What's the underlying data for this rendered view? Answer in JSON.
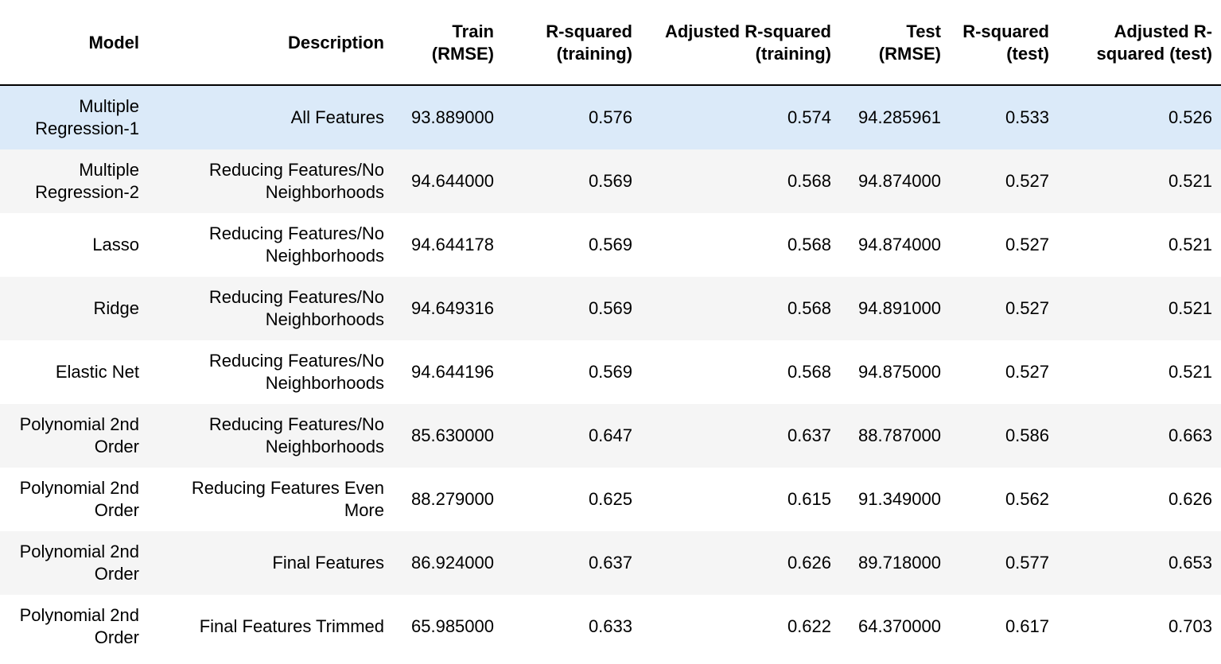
{
  "table": {
    "columns": [
      "Model",
      "Description",
      "Train (RMSE)",
      "R-squared (training)",
      "Adjusted R-squared (training)",
      "Test (RMSE)",
      "R-squared (test)",
      "Adjusted R-squared (test)"
    ],
    "rows": [
      [
        "Multiple Regression-1",
        "All Features",
        "93.889000",
        "0.576",
        "0.574",
        "94.285961",
        "0.533",
        "0.526"
      ],
      [
        "Multiple Regression-2",
        "Reducing Features/No Neighborhoods",
        "94.644000",
        "0.569",
        "0.568",
        "94.874000",
        "0.527",
        "0.521"
      ],
      [
        "Lasso",
        "Reducing Features/No Neighborhoods",
        "94.644178",
        "0.569",
        "0.568",
        "94.874000",
        "0.527",
        "0.521"
      ],
      [
        "Ridge",
        "Reducing Features/No Neighborhoods",
        "94.649316",
        "0.569",
        "0.568",
        "94.891000",
        "0.527",
        "0.521"
      ],
      [
        "Elastic Net",
        "Reducing Features/No Neighborhoods",
        "94.644196",
        "0.569",
        "0.568",
        "94.875000",
        "0.527",
        "0.521"
      ],
      [
        "Polynomial 2nd Order",
        "Reducing Features/No Neighborhoods",
        "85.630000",
        "0.647",
        "0.637",
        "88.787000",
        "0.586",
        "0.663"
      ],
      [
        "Polynomial 2nd Order",
        "Reducing Features Even More",
        "88.279000",
        "0.625",
        "0.615",
        "91.349000",
        "0.562",
        "0.626"
      ],
      [
        "Polynomial 2nd Order",
        "Final Features",
        "86.924000",
        "0.637",
        "0.626",
        "89.718000",
        "0.577",
        "0.653"
      ],
      [
        "Polynomial 2nd Order",
        "Final Features Trimmed",
        "65.985000",
        "0.633",
        "0.622",
        "64.370000",
        "0.617",
        "0.703"
      ]
    ],
    "highlighted_row": 0
  },
  "colors": {
    "header_border": "#000000",
    "row_stripe": "#f5f5f5",
    "row_hover": "#dbeaf9"
  }
}
